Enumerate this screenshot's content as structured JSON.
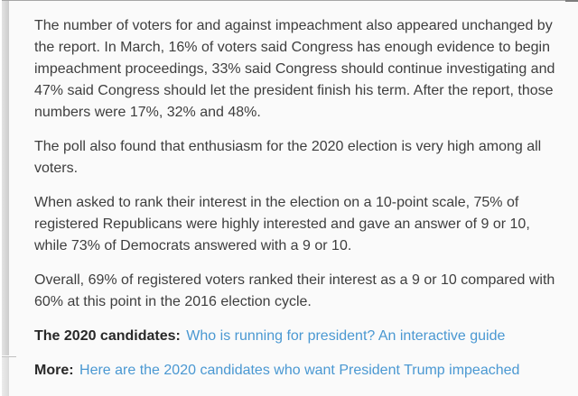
{
  "page": {
    "background_color": "#fafafa",
    "text_color": "#3e3e3e",
    "label_color": "#282828",
    "link_color": "#4a98d2"
  },
  "article": {
    "paragraphs": [
      "The number of voters for and against impeachment also appeared unchanged by the report. In March, 16% of voters said Congress has enough evidence to begin impeachment proceedings, 33% said Congress should continue investigating and 47% said Congress should let the president finish his term. After the report, those numbers were 17%, 32% and 48%.",
      "The poll also found that enthusiasm for the 2020 election is very high among all voters.",
      "When asked to rank their interest in the election on a 10-point scale, 75% of registered Republicans were highly interested and gave an answer of 9 or 10, while 73% of Democrats answered with a 9 or 10.",
      "Overall, 69% of registered voters ranked their interest as a 9 or 10 compared with 60% at this point in the 2016 election cycle."
    ],
    "labeled_links": [
      {
        "label": "The 2020 candidates:",
        "link": "Who is running for president? An interactive guide"
      },
      {
        "label": "More:",
        "link": "Here are the 2020 candidates who want President Trump impeached"
      }
    ]
  }
}
